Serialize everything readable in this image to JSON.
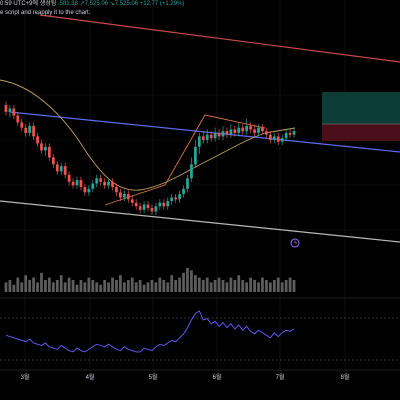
{
  "header": {
    "line1_time": "0:59 UTC+9에 생성됨",
    "line1_ohlc": ".581.38  ↗7,525.06  ↘7,525.06 +12.77 (+1.29%)",
    "line2": "e script and reapply it to the chart."
  },
  "xaxis": {
    "labels": [
      "3월",
      "4월",
      "5월",
      "6월",
      "7월",
      "8월"
    ]
  },
  "colors": {
    "background": "#000000",
    "up_candle": "#26a69a",
    "down_candle": "#ef5350",
    "channel_line": "#5b6cf0",
    "ma_line": "#c0a060",
    "rsi_line": "#6a5cff",
    "volume": "#5d5d5d"
  },
  "chart_data": {
    "type": "candlestick",
    "candles": [
      [
        108,
        104,
        110,
        102
      ],
      [
        104,
        106,
        108,
        101
      ],
      [
        106,
        102,
        108,
        100
      ],
      [
        102,
        98,
        104,
        96
      ],
      [
        98,
        95,
        100,
        93
      ],
      [
        95,
        92,
        97,
        90
      ],
      [
        92,
        96,
        98,
        90
      ],
      [
        96,
        90,
        98,
        88
      ],
      [
        90,
        86,
        92,
        84
      ],
      [
        86,
        82,
        88,
        80
      ],
      [
        82,
        84,
        86,
        79
      ],
      [
        84,
        78,
        86,
        76
      ],
      [
        78,
        74,
        80,
        72
      ],
      [
        74,
        70,
        76,
        68
      ],
      [
        70,
        73,
        75,
        68
      ],
      [
        73,
        68,
        75,
        66
      ],
      [
        68,
        64,
        70,
        62
      ],
      [
        64,
        62,
        66,
        60
      ],
      [
        62,
        65,
        67,
        60
      ],
      [
        65,
        61,
        67,
        59
      ],
      [
        61,
        58,
        63,
        56
      ],
      [
        58,
        60,
        62,
        56
      ],
      [
        60,
        63,
        65,
        58
      ],
      [
        63,
        66,
        68,
        61
      ],
      [
        66,
        64,
        68,
        62
      ],
      [
        64,
        62,
        66,
        60
      ],
      [
        62,
        64,
        66,
        60
      ],
      [
        64,
        61,
        66,
        59
      ],
      [
        61,
        58,
        63,
        56
      ],
      [
        58,
        55,
        60,
        53
      ],
      [
        55,
        57,
        59,
        53
      ],
      [
        57,
        54,
        59,
        52
      ],
      [
        54,
        52,
        56,
        50
      ],
      [
        52,
        50,
        54,
        48
      ],
      [
        50,
        48,
        52,
        46
      ],
      [
        48,
        51,
        53,
        46
      ],
      [
        51,
        49,
        53,
        47
      ],
      [
        49,
        47,
        51,
        45
      ],
      [
        47,
        50,
        52,
        45
      ],
      [
        50,
        52,
        54,
        48
      ],
      [
        52,
        50,
        54,
        48
      ],
      [
        50,
        53,
        55,
        48
      ],
      [
        53,
        55,
        57,
        51
      ],
      [
        55,
        54,
        57,
        52
      ],
      [
        54,
        57,
        59,
        52
      ],
      [
        57,
        60,
        62,
        55
      ],
      [
        60,
        66,
        68,
        58
      ],
      [
        66,
        74,
        78,
        64
      ],
      [
        74,
        84,
        88,
        72
      ],
      [
        84,
        90,
        92,
        80
      ],
      [
        90,
        88,
        93,
        86
      ],
      [
        88,
        91,
        94,
        86
      ],
      [
        91,
        89,
        93,
        87
      ],
      [
        89,
        92,
        95,
        87
      ],
      [
        92,
        90,
        94,
        88
      ],
      [
        90,
        93,
        96,
        88
      ],
      [
        93,
        91,
        95,
        89
      ],
      [
        91,
        94,
        97,
        89
      ],
      [
        94,
        92,
        96,
        90
      ],
      [
        92,
        95,
        98,
        90
      ],
      [
        95,
        93,
        97,
        91
      ],
      [
        93,
        96,
        100,
        91
      ],
      [
        96,
        94,
        98,
        92
      ],
      [
        94,
        92,
        96,
        90
      ],
      [
        92,
        95,
        97,
        90
      ],
      [
        95,
        93,
        97,
        91
      ],
      [
        93,
        91,
        95,
        89
      ],
      [
        91,
        88,
        93,
        86
      ],
      [
        88,
        90,
        92,
        86
      ],
      [
        90,
        87,
        92,
        85
      ],
      [
        87,
        89,
        91,
        85
      ],
      [
        89,
        92,
        94,
        87
      ],
      [
        92,
        91,
        94,
        89
      ],
      [
        91,
        93,
        95,
        89
      ]
    ],
    "volume": [
      4,
      5,
      3,
      6,
      4,
      7,
      5,
      6,
      4,
      8,
      5,
      6,
      4,
      5,
      7,
      4,
      6,
      5,
      3,
      5,
      4,
      6,
      5,
      4,
      3,
      5,
      4,
      6,
      5,
      7,
      4,
      5,
      6,
      4,
      5,
      3,
      4,
      5,
      4,
      6,
      5,
      4,
      7,
      5,
      6,
      8,
      10,
      9,
      7,
      6,
      5,
      6,
      4,
      5,
      6,
      5,
      4,
      6,
      5,
      7,
      5,
      4,
      6,
      5,
      4,
      6,
      5,
      4,
      5,
      6,
      4,
      5,
      6,
      5
    ],
    "rsi": [
      48,
      46,
      44,
      42,
      40,
      38,
      42,
      36,
      34,
      32,
      36,
      30,
      28,
      26,
      32,
      28,
      24,
      22,
      28,
      24,
      22,
      26,
      30,
      34,
      32,
      30,
      34,
      30,
      26,
      24,
      30,
      26,
      24,
      22,
      22,
      28,
      26,
      24,
      30,
      34,
      32,
      36,
      40,
      38,
      44,
      50,
      60,
      72,
      82,
      86,
      72,
      74,
      66,
      70,
      62,
      68,
      60,
      66,
      58,
      64,
      56,
      62,
      54,
      50,
      56,
      52,
      48,
      44,
      52,
      46,
      52,
      56,
      54,
      58
    ]
  }
}
